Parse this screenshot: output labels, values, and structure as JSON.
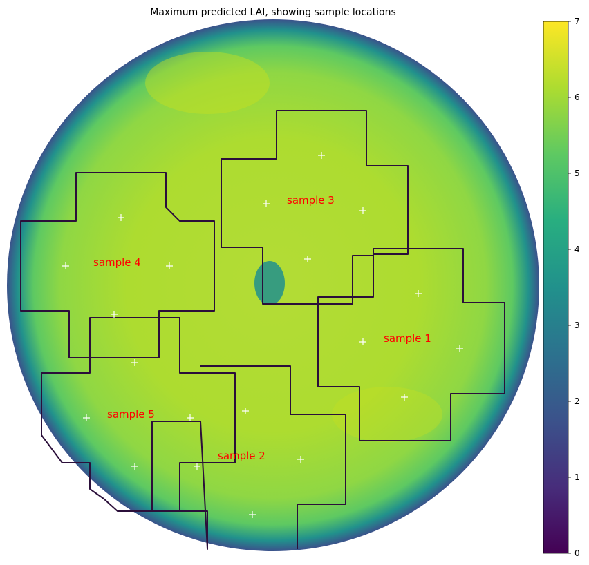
{
  "chart_data": {
    "type": "heatmap",
    "title": "Maximum predicted LAI, showing sample locations",
    "colormap": "viridis",
    "colorbar": {
      "vmin": 0,
      "vmax": 7,
      "ticks": [
        "0",
        "1",
        "2",
        "3",
        "4",
        "5",
        "6",
        "7"
      ]
    },
    "samples": [
      {
        "name": "sample 1"
      },
      {
        "name": "sample 2"
      },
      {
        "name": "sample 3"
      },
      {
        "name": "sample 4"
      },
      {
        "name": "sample 5"
      }
    ]
  }
}
